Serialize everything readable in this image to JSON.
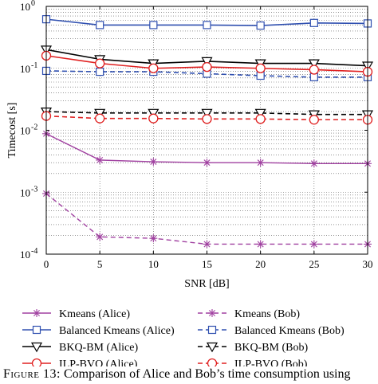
{
  "chart_data": {
    "type": "line",
    "xlabel": "SNR [dB]",
    "ylabel": "Timecost [s]",
    "yscale": "log",
    "xlim": [
      0,
      30
    ],
    "ylim": [
      0.0001,
      1
    ],
    "grid": true,
    "legend_position": "bottom",
    "x": [
      0,
      5,
      10,
      15,
      20,
      25,
      30
    ],
    "x_tick_labels": [
      "0",
      "5",
      "10",
      "15",
      "20",
      "25",
      "30"
    ],
    "y_tick_labels": [
      {
        "base": "10",
        "exp": "0"
      },
      {
        "base": "10",
        "exp": "-1"
      },
      {
        "base": "10",
        "exp": "-2"
      },
      {
        "base": "10",
        "exp": "-3"
      },
      {
        "base": "10",
        "exp": "-4"
      }
    ],
    "y_tick_values": [
      1,
      0.1,
      0.01,
      0.001,
      0.0001
    ],
    "series": [
      {
        "name": "Kmeans (Alice)",
        "color": "#a040a0",
        "line": "solid",
        "marker": "star",
        "values": [
          0.0088,
          0.0033,
          0.0031,
          0.003,
          0.003,
          0.0029,
          0.0029
        ]
      },
      {
        "name": "Kmeans (Bob)",
        "color": "#a040a0",
        "line": "dashed",
        "marker": "star",
        "values": [
          0.00095,
          0.00019,
          0.00018,
          0.000145,
          0.000145,
          0.000145,
          0.000145
        ]
      },
      {
        "name": "Balanced Kmeans (Alice)",
        "color": "#3050b0",
        "line": "solid",
        "marker": "square",
        "values": [
          0.62,
          0.5,
          0.5,
          0.5,
          0.49,
          0.54,
          0.53
        ]
      },
      {
        "name": "Balanced Kmeans (Bob)",
        "color": "#3050b0",
        "line": "dashed",
        "marker": "square",
        "values": [
          0.091,
          0.088,
          0.088,
          0.082,
          0.076,
          0.072,
          0.072
        ]
      },
      {
        "name": "BKQ-BM (Alice)",
        "color": "#000000",
        "line": "solid",
        "marker": "triangle-down",
        "values": [
          0.2,
          0.14,
          0.12,
          0.13,
          0.12,
          0.12,
          0.11
        ]
      },
      {
        "name": "BKQ-BM (Bob)",
        "color": "#000000",
        "line": "dashed",
        "marker": "triangle-down",
        "values": [
          0.02,
          0.019,
          0.019,
          0.019,
          0.019,
          0.018,
          0.018
        ]
      },
      {
        "name": "ILP-BVQ (Alice)",
        "color": "#e02020",
        "line": "solid",
        "marker": "circle",
        "values": [
          0.16,
          0.12,
          0.1,
          0.105,
          0.1,
          0.095,
          0.088
        ]
      },
      {
        "name": "ILP-BVQ (Bob)",
        "color": "#e02020",
        "line": "dashed",
        "marker": "circle",
        "values": [
          0.017,
          0.0155,
          0.0155,
          0.0152,
          0.0152,
          0.0148,
          0.0148
        ]
      }
    ]
  },
  "caption": {
    "label": "Figure 13:",
    "text": " Comparison of Alice and Bob’s time consumption using"
  }
}
